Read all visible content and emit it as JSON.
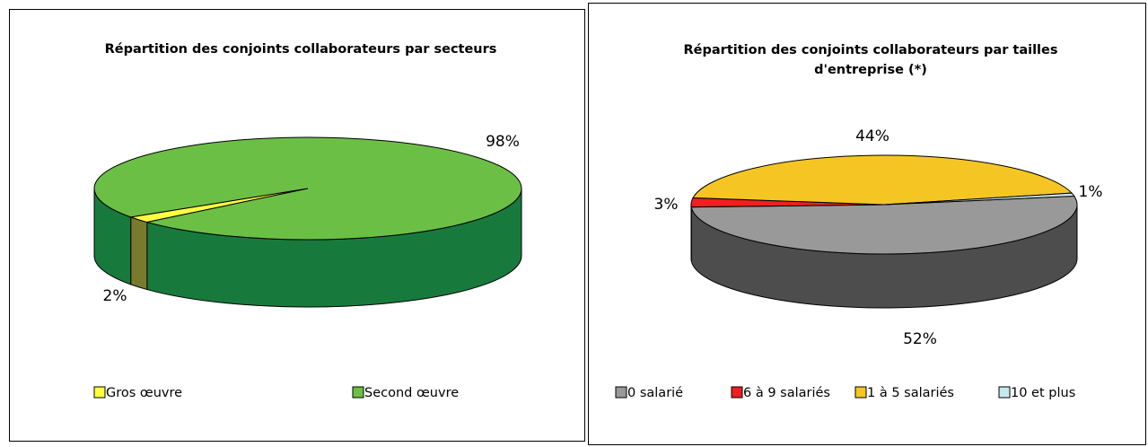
{
  "chart_data": [
    {
      "type": "pie",
      "title": "Répartition des conjoints collaborateurs par secteurs",
      "categories": [
        "Gros œuvre",
        "Second œuvre"
      ],
      "values": [
        2,
        98
      ],
      "value_labels": [
        "2%",
        "98%"
      ],
      "colors": [
        "#ffff40",
        "#6cbf45"
      ],
      "side_colors": [
        "#7a7a2e",
        "#177a3c"
      ],
      "legend": "bottom"
    },
    {
      "type": "pie",
      "title": "Répartition des conjoints collaborateurs  par tailles d'entreprise (*)",
      "categories": [
        "0 salarié",
        "6 à 9 salariés",
        "1 à 5 salariés",
        "10 et plus"
      ],
      "values": [
        52,
        3,
        44,
        1
      ],
      "value_labels": [
        "52%",
        "3%",
        "44%",
        "1%"
      ],
      "colors": [
        "#999999",
        "#ee2020",
        "#f5c623",
        "#c6e9ef"
      ],
      "side_colors": [
        "#4d4d4d",
        "#9a1010",
        "#a07d10",
        "#7fa3a8"
      ],
      "legend": "bottom"
    }
  ]
}
